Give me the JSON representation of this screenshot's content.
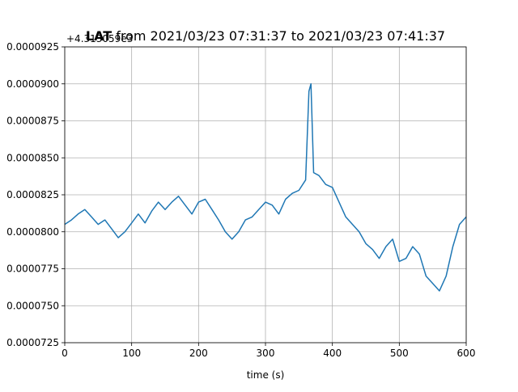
{
  "chart_data": {
    "type": "line",
    "title": "LAT from 2021/03/23 07:31:37 to 2021/03/23 07:41:37",
    "title_bold_part": "LAT",
    "xlabel": "time (s)",
    "ylabel": "",
    "offset_label": "+4.313059e3",
    "xlim": [
      0,
      600
    ],
    "ylim": [
      7.25e-05,
      9.25e-05
    ],
    "x_ticks": [
      0,
      100,
      200,
      300,
      400,
      500,
      600
    ],
    "x_tick_labels": [
      "0",
      "100",
      "200",
      "300",
      "400",
      "500",
      "600"
    ],
    "y_ticks": [
      7.25e-05,
      7.5e-05,
      7.75e-05,
      8e-05,
      8.25e-05,
      8.5e-05,
      8.75e-05,
      9e-05,
      9.25e-05
    ],
    "y_tick_labels": [
      "0.0000725",
      "0.0000750",
      "0.0000775",
      "0.0000800",
      "0.0000825",
      "0.0000850",
      "0.0000875",
      "0.0000900",
      "0.0000925"
    ],
    "grid": true,
    "series": [
      {
        "color": "#1f77b4",
        "x": [
          0,
          10,
          20,
          30,
          40,
          50,
          60,
          70,
          80,
          90,
          100,
          110,
          120,
          130,
          140,
          150,
          160,
          170,
          180,
          190,
          200,
          210,
          220,
          230,
          240,
          250,
          260,
          270,
          280,
          290,
          300,
          310,
          320,
          330,
          340,
          350,
          360,
          365,
          368,
          372,
          380,
          390,
          400,
          410,
          420,
          430,
          440,
          450,
          460,
          470,
          480,
          490,
          500,
          510,
          520,
          530,
          540,
          550,
          560,
          570,
          580,
          590,
          600
        ],
        "y": [
          8.05e-05,
          8.08e-05,
          8.12e-05,
          8.15e-05,
          8.1e-05,
          8.05e-05,
          8.08e-05,
          8.02e-05,
          7.96e-05,
          8e-05,
          8.06e-05,
          8.12e-05,
          8.06e-05,
          8.14e-05,
          8.2e-05,
          8.15e-05,
          8.2e-05,
          8.24e-05,
          8.18e-05,
          8.12e-05,
          8.2e-05,
          8.22e-05,
          8.15e-05,
          8.08e-05,
          8e-05,
          7.95e-05,
          8e-05,
          8.08e-05,
          8.1e-05,
          8.15e-05,
          8.2e-05,
          8.18e-05,
          8.12e-05,
          8.22e-05,
          8.26e-05,
          8.28e-05,
          8.35e-05,
          8.95e-05,
          9e-05,
          8.4e-05,
          8.38e-05,
          8.32e-05,
          8.3e-05,
          8.2e-05,
          8.1e-05,
          8.05e-05,
          8e-05,
          7.92e-05,
          7.88e-05,
          7.82e-05,
          7.9e-05,
          7.95e-05,
          7.8e-05,
          7.82e-05,
          7.9e-05,
          7.85e-05,
          7.7e-05,
          7.65e-05,
          7.6e-05,
          7.7e-05,
          7.9e-05,
          8.05e-05,
          8.1e-05
        ]
      }
    ]
  }
}
